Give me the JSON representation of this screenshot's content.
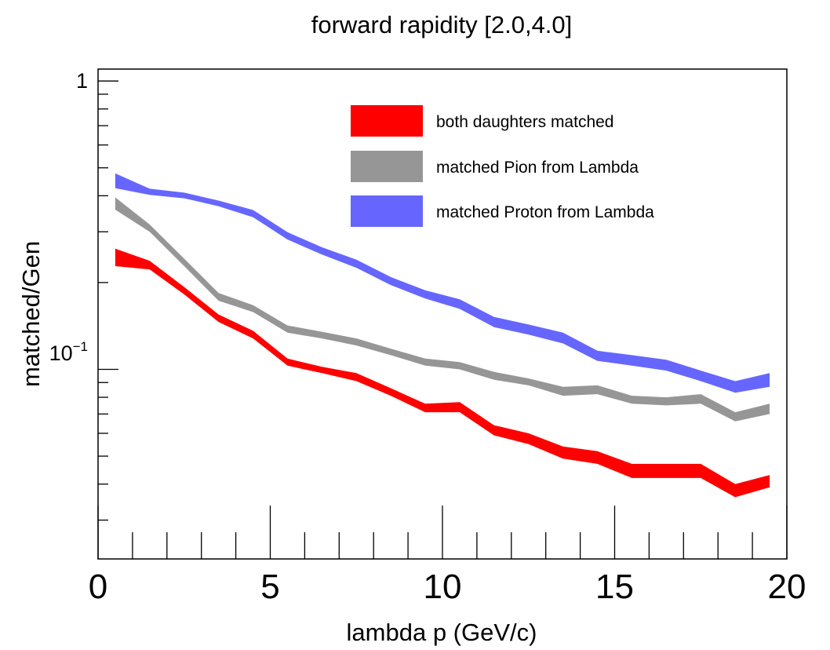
{
  "chart_data": {
    "type": "area",
    "title": "forward rapidity [2.0,4.0]",
    "xlabel": "lambda p (GeV/c)",
    "ylabel": "matched/Gen",
    "xlim": [
      0,
      20
    ],
    "ylim": [
      0.022,
      1.1
    ],
    "yscale": "log",
    "x_ticks": [
      "0",
      "5",
      "10",
      "15",
      "20"
    ],
    "y_ticks": [
      {
        "base": "1",
        "exp": ""
      },
      {
        "base": "10",
        "exp": "−1"
      }
    ],
    "grid": false,
    "legend_position": "top-right",
    "x": [
      0.5,
      1.5,
      2.5,
      3.5,
      4.5,
      5.5,
      6.5,
      7.5,
      8.5,
      9.5,
      10.5,
      11.5,
      12.5,
      13.5,
      14.5,
      15.5,
      16.5,
      17.5,
      18.5,
      19.5
    ],
    "series": [
      {
        "name": "both daughters matched",
        "color": "#ff0000",
        "lower": [
          0.228,
          0.222,
          0.182,
          0.146,
          0.128,
          0.103,
          0.097,
          0.091,
          0.081,
          0.071,
          0.071,
          0.059,
          0.055,
          0.049,
          0.047,
          0.042,
          0.042,
          0.042,
          0.036,
          0.039
        ],
        "upper": [
          0.262,
          0.238,
          0.193,
          0.155,
          0.136,
          0.109,
          0.102,
          0.097,
          0.086,
          0.076,
          0.077,
          0.064,
          0.06,
          0.054,
          0.052,
          0.047,
          0.047,
          0.047,
          0.04,
          0.043
        ]
      },
      {
        "name": "matched Pion from Lambda",
        "color": "#969696",
        "lower": [
          0.358,
          0.3,
          0.228,
          0.173,
          0.158,
          0.134,
          0.128,
          0.121,
          0.112,
          0.103,
          0.1,
          0.092,
          0.088,
          0.081,
          0.082,
          0.076,
          0.075,
          0.076,
          0.066,
          0.07
        ],
        "upper": [
          0.395,
          0.318,
          0.242,
          0.184,
          0.167,
          0.142,
          0.135,
          0.128,
          0.118,
          0.109,
          0.106,
          0.098,
          0.093,
          0.087,
          0.088,
          0.081,
          0.08,
          0.082,
          0.071,
          0.076
        ]
      },
      {
        "name": "matched Proton from Lambda",
        "color": "#6666ff",
        "lower": [
          0.425,
          0.403,
          0.392,
          0.368,
          0.337,
          0.282,
          0.25,
          0.225,
          0.196,
          0.176,
          0.162,
          0.14,
          0.132,
          0.123,
          0.107,
          0.103,
          0.099,
          0.091,
          0.083,
          0.087
        ],
        "upper": [
          0.478,
          0.423,
          0.41,
          0.385,
          0.357,
          0.299,
          0.265,
          0.24,
          0.209,
          0.188,
          0.175,
          0.152,
          0.143,
          0.134,
          0.116,
          0.112,
          0.108,
          0.099,
          0.091,
          0.097
        ]
      }
    ]
  }
}
